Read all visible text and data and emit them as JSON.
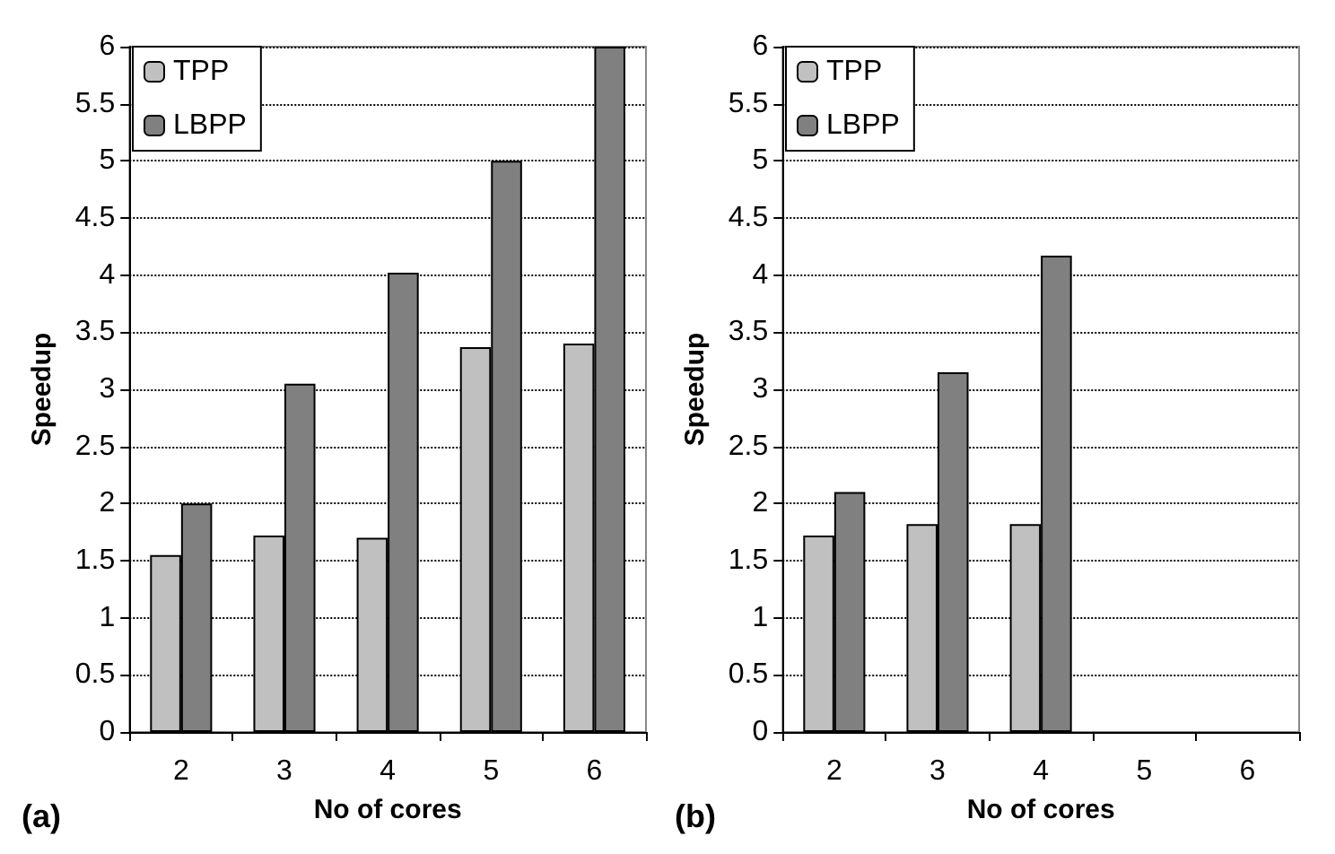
{
  "chart_data": [
    {
      "type": "bar",
      "xlabel": "No of cores",
      "ylabel": "Speedup",
      "annotations": [
        "(a)"
      ],
      "categories": [
        "2",
        "3",
        "4",
        "5",
        "6"
      ],
      "series": [
        {
          "name": "TPP",
          "color": "#c0c0c0",
          "values": [
            1.55,
            1.72,
            1.7,
            3.37,
            3.4
          ]
        },
        {
          "name": "LBPP",
          "color": "#808080",
          "values": [
            2.0,
            3.05,
            4.02,
            5.0,
            6.0
          ]
        }
      ],
      "ylim": [
        0,
        6
      ],
      "yticks": [
        0,
        0.5,
        1,
        1.5,
        2,
        2.5,
        3,
        3.5,
        4,
        4.5,
        5,
        5.5,
        6
      ],
      "grid": "y",
      "legend": "top left"
    },
    {
      "type": "bar",
      "xlabel": "No of cores",
      "ylabel": "Speedup",
      "annotations": [
        "(b)"
      ],
      "categories": [
        "2",
        "3",
        "4",
        "5",
        "6"
      ],
      "series": [
        {
          "name": "TPP",
          "color": "#c0c0c0",
          "values": [
            1.72,
            1.82,
            1.82,
            null,
            null
          ]
        },
        {
          "name": "LBPP",
          "color": "#808080",
          "values": [
            2.1,
            3.15,
            4.17,
            null,
            null
          ]
        }
      ],
      "ylim": [
        0,
        6
      ],
      "yticks": [
        0,
        0.5,
        1,
        1.5,
        2,
        2.5,
        3,
        3.5,
        4,
        4.5,
        5,
        5.5,
        6
      ],
      "grid": "y",
      "legend": "top left"
    }
  ]
}
